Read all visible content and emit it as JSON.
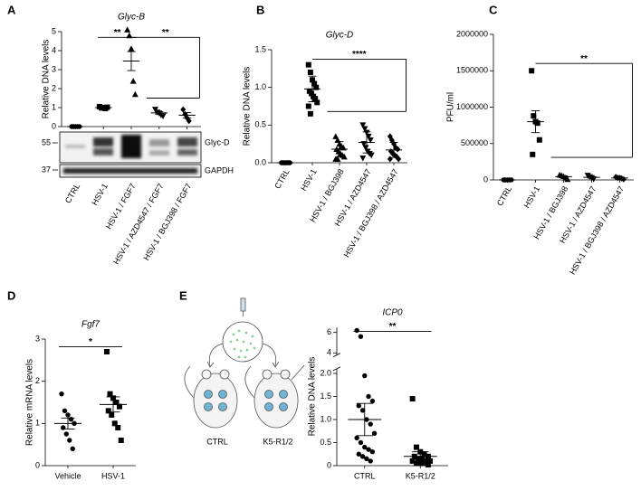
{
  "chart_data": [
    {
      "type": "dot",
      "panel": "A",
      "title": "Glyc-B",
      "ylabel": "Relative DNA levels",
      "categories": [
        "CTRL",
        "HSV-1",
        "HSV-1 / FGF7",
        "HSV-1 / AZD4547 / FGF7",
        "HSV-1 / BGJ398 / FGF7"
      ],
      "values": [
        [
          0,
          0,
          0,
          0,
          0,
          0
        ],
        [
          1.05,
          0.98,
          1.0,
          0.95,
          1.02
        ],
        [
          5.1,
          4.8,
          4.1,
          2.4,
          1.7
        ],
        [
          0.9,
          0.75,
          0.7,
          0.6,
          0.55
        ],
        [
          0.9,
          0.65,
          0.45,
          0.3
        ]
      ],
      "mean": [
        0,
        1.0,
        3.45,
        0.72,
        0.6
      ],
      "error": [
        0,
        0.02,
        0.5,
        0.07,
        0.14
      ],
      "markers": [
        "circle",
        "square",
        "triangle",
        "triangle-down",
        "diamond"
      ],
      "color": "#000000",
      "ylim": [
        0,
        5
      ],
      "yticks": [
        0,
        1,
        2,
        3,
        4,
        5
      ],
      "significance": [
        {
          "label": "**",
          "pair": [
            1,
            2
          ]
        },
        {
          "label": "**",
          "pair": [
            2,
            [
              3,
              4
            ]
          ]
        }
      ],
      "blot_size_markers": [
        55,
        37
      ],
      "blot_bands": [
        "Glyc-D",
        "GAPDH"
      ]
    },
    {
      "type": "dot",
      "panel": "B",
      "title": "Glyc-D",
      "ylabel": "Relative DNA levels",
      "categories": [
        "CTRL",
        "HSV-1",
        "HSV-1 / BGJ398",
        "HSV-1 / AZD4547",
        "HSV-1 / BGJ398 / AZD4547"
      ],
      "values": [
        [
          0,
          0,
          0,
          0,
          0,
          0,
          0,
          0,
          0,
          0
        ],
        [
          1.3,
          1.2,
          1.1,
          1.05,
          1.0,
          0.95,
          0.92,
          0.88,
          0.85,
          0.8,
          0.75,
          0.65
        ],
        [
          0.35,
          0.3,
          0.25,
          0.22,
          0.2,
          0.18,
          0.15,
          0.12,
          0.1,
          0.08,
          0.05,
          0.05
        ],
        [
          0.5,
          0.45,
          0.4,
          0.35,
          0.3,
          0.25,
          0.2,
          0.15,
          0.12,
          0.1,
          0.06
        ],
        [
          0.35,
          0.3,
          0.25,
          0.2,
          0.18,
          0.15,
          0.12,
          0.1,
          0.08,
          0.05,
          0.05
        ]
      ],
      "mean": [
        0,
        0.98,
        0.18,
        0.27,
        0.17
      ],
      "error": [
        0,
        0.17,
        0.1,
        0.14,
        0.1
      ],
      "markers": [
        "circle",
        "square",
        "triangle",
        "triangle-down",
        "diamond"
      ],
      "color": "#000000",
      "ylim": [
        0,
        1.5
      ],
      "yticks": [
        {
          "value": 0,
          "label": "0.0"
        },
        0.5,
        {
          "value": 1,
          "label": "1.0"
        },
        1.5
      ],
      "significance": [
        {
          "label": "****",
          "pair": [
            1,
            [
              2,
              3,
              4
            ]
          ]
        }
      ]
    },
    {
      "type": "dot",
      "panel": "C",
      "ylabel": "PFU/ml",
      "categories": [
        "CTRL",
        "HSV-1",
        "HSV-1 / BGJ398",
        "HSV-1 / AZD4547",
        "HSV-1 / BGJ398 / AZD4547"
      ],
      "values": [
        [
          0,
          0,
          0,
          0,
          0,
          0
        ],
        [
          1500000,
          880000,
          800000,
          780000,
          550000,
          350000
        ],
        [
          70000,
          60000,
          50000,
          30000,
          10000
        ],
        [
          60000,
          40000,
          30000,
          10000
        ],
        [
          40000,
          30000,
          30000,
          20000,
          10000
        ]
      ],
      "mean": [
        0,
        800000,
        45000,
        35000,
        26000
      ],
      "error": [
        0,
        150000,
        12000,
        10000,
        6000
      ],
      "markers": [
        "circle",
        "square",
        "triangle",
        "triangle-down",
        "diamond"
      ],
      "color": "#000000",
      "ylim": [
        0,
        2000000
      ],
      "yticks": [
        0,
        500000,
        1000000,
        1500000,
        2000000
      ],
      "significance": [
        {
          "label": "**",
          "pair": [
            1,
            [
              2,
              3,
              4
            ]
          ]
        }
      ]
    },
    {
      "type": "dot",
      "panel": "D",
      "title": "Fgf7",
      "ylabel": "Relative mRNA levels",
      "categories": [
        "Vehicle",
        "HSV-1"
      ],
      "values": [
        [
          1.7,
          1.3,
          1.2,
          1.1,
          1.0,
          0.9,
          0.75,
          0.6,
          0.4
        ],
        [
          2.7,
          1.7,
          1.6,
          1.5,
          1.4,
          1.3,
          1.2,
          1.0,
          0.9,
          0.6
        ]
      ],
      "mean": [
        1.0,
        1.45
      ],
      "error": [
        0.13,
        0.18
      ],
      "markers": [
        "circle",
        "square"
      ],
      "color": "#000000",
      "ylim": [
        0,
        3
      ],
      "yticks": [
        0,
        1,
        2,
        3
      ],
      "significance": [
        {
          "label": "*",
          "pair": [
            0,
            1
          ]
        }
      ]
    },
    {
      "type": "dot",
      "panel": "E",
      "title": "ICP0",
      "ylabel": "Relative DNA levels",
      "categories": [
        "CTRL",
        "K5-R1/2"
      ],
      "values": [
        [
          6.2,
          5.6,
          1.95,
          1.5,
          1.4,
          1.3,
          1.2,
          1.0,
          0.9,
          0.7,
          0.6,
          0.5,
          0.4,
          0.35,
          0.3,
          0.25,
          0.2,
          0.15,
          0.1
        ],
        [
          1.45,
          0.4,
          0.3,
          0.25,
          0.2,
          0.2,
          0.15,
          0.15,
          0.1,
          0.1,
          0.1,
          0.05,
          0.05,
          0.05,
          0.02
        ]
      ],
      "mean": [
        1.0,
        0.2
      ],
      "error": [
        0.35,
        0.1
      ],
      "markers": [
        "circle",
        "square"
      ],
      "color": "#000000",
      "ylim": [
        0,
        6.5
      ],
      "axis_break": [
        2.1,
        3.8
      ],
      "yticks": [
        0,
        0.5,
        {
          "value": 1,
          "label": "1.0"
        },
        1.5,
        {
          "value": 2,
          "label": "2.0"
        },
        4,
        6
      ],
      "significance": [
        {
          "label": "**",
          "pair": [
            0,
            1
          ]
        }
      ],
      "illustration_labels": [
        "CTRL",
        "K5-R1/2"
      ]
    }
  ]
}
